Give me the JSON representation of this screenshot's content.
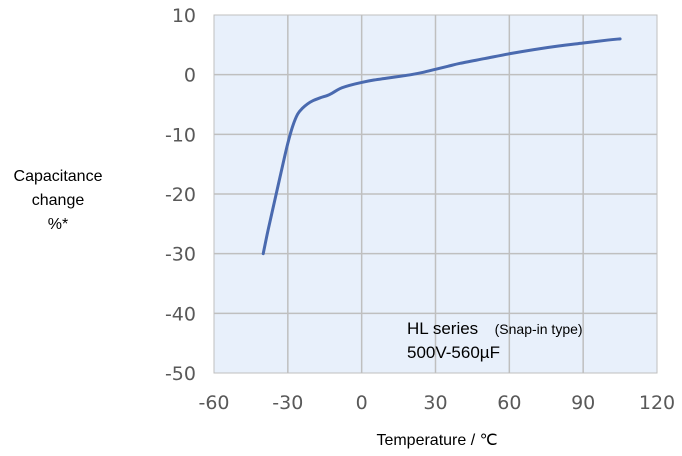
{
  "chart_data": {
    "type": "line",
    "title": "",
    "xlabel": "Temperature / ℃",
    "ylabel_lines": [
      "Capacitance",
      "change",
      "%*"
    ],
    "xlim": [
      -60,
      120
    ],
    "ylim": [
      -50,
      10
    ],
    "x_ticks": [
      "-60",
      "-30",
      "0",
      "30",
      "60",
      "90",
      "120"
    ],
    "y_ticks": [
      "10",
      "0",
      "-10",
      "-20",
      "-30",
      "-40",
      "-50"
    ],
    "grid": true,
    "colors": {
      "plot_background": "#E8F0FB",
      "line": "#4A6AAF",
      "grid": "#BFBFBF",
      "tick_text": "#595959"
    },
    "annotation": {
      "line1_main": "HL series",
      "line1_sub": "(Snap-in type)",
      "line2": "500V-560µF"
    },
    "series": [
      {
        "x": [
          -40,
          -38,
          -35,
          -32,
          -30,
          -28,
          -26,
          -24,
          -22,
          -20,
          -17,
          -14,
          -12,
          -10,
          -8,
          -5,
          0,
          5,
          10,
          15,
          20,
          25,
          30,
          35,
          40,
          50,
          60,
          70,
          80,
          90,
          100,
          105
        ],
        "values": [
          -30,
          -26,
          -20.5,
          -15,
          -11.5,
          -8.6,
          -6.6,
          -5.6,
          -4.9,
          -4.4,
          -3.9,
          -3.5,
          -3.1,
          -2.6,
          -2.2,
          -1.8,
          -1.3,
          -0.9,
          -0.6,
          -0.3,
          0.0,
          0.4,
          0.9,
          1.4,
          1.9,
          2.7,
          3.5,
          4.2,
          4.8,
          5.3,
          5.8,
          6.0
        ]
      }
    ]
  }
}
